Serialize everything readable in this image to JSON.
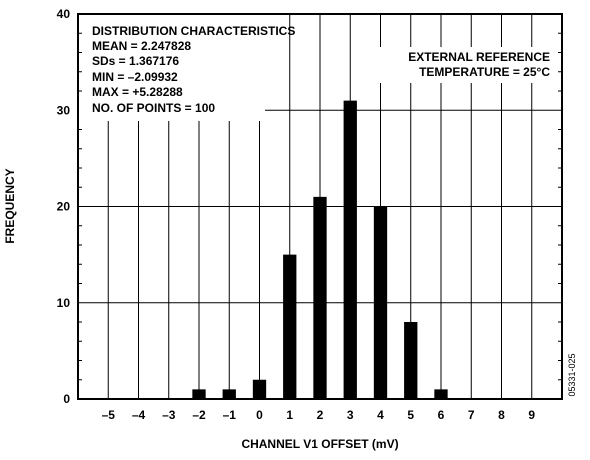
{
  "chart_data": {
    "type": "bar",
    "title": "",
    "xlabel": "CHANNEL V1 OFFSET (mV)",
    "ylabel": "FREQUENCY",
    "categories": [
      "-5",
      "-4",
      "-3",
      "-2",
      "-1",
      "0",
      "1",
      "2",
      "3",
      "4",
      "5",
      "6",
      "7",
      "8",
      "9"
    ],
    "x": [
      -5,
      -4,
      -3,
      -2,
      -1,
      0,
      1,
      2,
      3,
      4,
      5,
      6,
      7,
      8,
      9
    ],
    "values": [
      0,
      0,
      0,
      1,
      1,
      2,
      15,
      21,
      31,
      20,
      8,
      1,
      0,
      0,
      0
    ],
    "x_tick_labels": [
      "–5",
      "–4",
      "–3",
      "–2",
      "–1",
      "0",
      "1",
      "2",
      "3",
      "4",
      "5",
      "6",
      "7",
      "8",
      "9"
    ],
    "y_ticks": [
      0,
      10,
      20,
      30,
      40
    ],
    "xlim": [
      -6,
      10
    ],
    "ylim": [
      0,
      40
    ],
    "grid": true,
    "bar_color": "#000000",
    "annotations": {
      "stats": [
        "DISTRIBUTION CHARACTERISTICS",
        "MEAN = 2.247828",
        "SDs = 1.367176",
        "MIN = –2.09932",
        "MAX = +5.28288",
        "NO. OF POINTS = 100"
      ],
      "conditions": [
        "EXTERNAL REFERENCE",
        "TEMPERATURE  = 25°C"
      ],
      "figure_id": "05331-025"
    }
  }
}
